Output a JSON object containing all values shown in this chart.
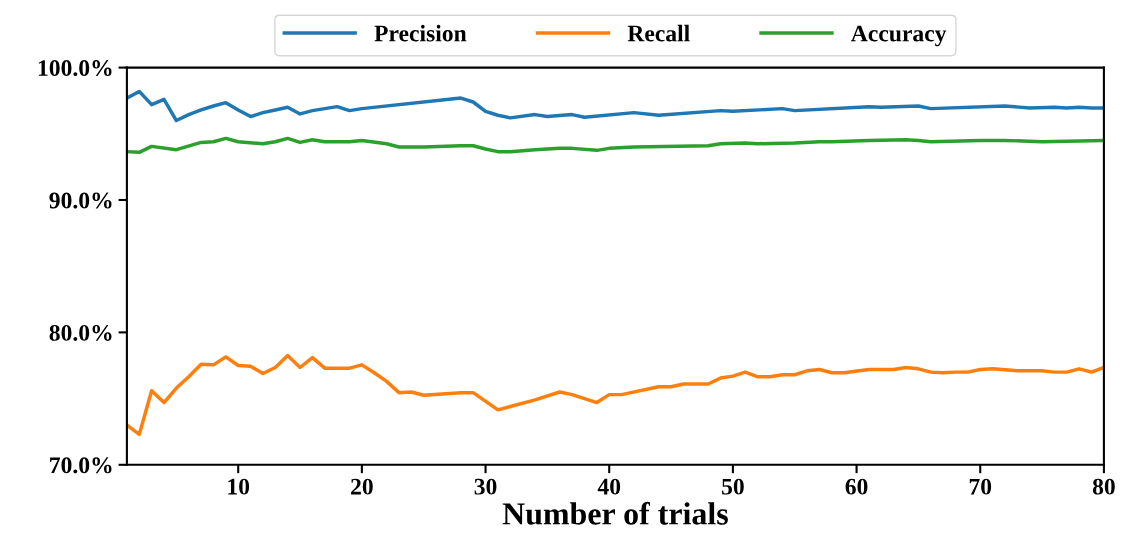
{
  "chart_data": {
    "type": "line",
    "xlabel": "Number of trials",
    "xlim": [
      1,
      80
    ],
    "xticks": [
      10,
      20,
      30,
      40,
      50,
      60,
      70,
      80
    ],
    "ylim": [
      70,
      100
    ],
    "yticks": [
      {
        "value": 70,
        "label": "70.0%"
      },
      {
        "value": 80,
        "label": "80.0%"
      },
      {
        "value": 90,
        "label": "90.0%"
      },
      {
        "value": 100,
        "label": "100.0%"
      }
    ],
    "grid": false,
    "legend": "top",
    "marker": "none",
    "line_style": "solid",
    "series": [
      {
        "name": "Precision",
        "color": "#1f77b4",
        "x": [
          1,
          2,
          3,
          4,
          5,
          6,
          7,
          8,
          9,
          10,
          11,
          12,
          13,
          14,
          15,
          16,
          17,
          18,
          19,
          20,
          28,
          29,
          30,
          31,
          32,
          34,
          35,
          37,
          38,
          42,
          44,
          49,
          50,
          54,
          55,
          61,
          62,
          65,
          66,
          72,
          74,
          76,
          77,
          78,
          79,
          80
        ],
        "values": [
          97.7,
          98.2,
          97.2,
          97.6,
          96.0,
          96.45,
          96.8,
          97.1,
          97.35,
          96.8,
          96.3,
          96.6,
          96.8,
          97.0,
          96.5,
          96.75,
          96.9,
          97.05,
          96.75,
          96.9,
          97.7,
          97.4,
          96.7,
          96.4,
          96.2,
          96.45,
          96.3,
          96.45,
          96.25,
          96.6,
          96.4,
          96.75,
          96.7,
          96.9,
          96.75,
          97.05,
          97.0,
          97.1,
          96.9,
          97.1,
          96.95,
          97.0,
          96.95,
          97.0,
          96.95,
          96.95
        ]
      },
      {
        "name": "Recall",
        "color": "#ff7f0e",
        "x": [
          1,
          2,
          3,
          4,
          5,
          6,
          7,
          8,
          9,
          10,
          11,
          12,
          13,
          14,
          15,
          16,
          17,
          19,
          20,
          21,
          22,
          23,
          24,
          25,
          28,
          29,
          31,
          34,
          36,
          37,
          39,
          40,
          41,
          44,
          45,
          46,
          48,
          49,
          50,
          51,
          52,
          53,
          54,
          55,
          56,
          57,
          58,
          59,
          61,
          63,
          64,
          65,
          66,
          67,
          68,
          69,
          70,
          71,
          73,
          75,
          76,
          77,
          78,
          79,
          80
        ],
        "values": [
          73.0,
          72.3,
          75.6,
          74.7,
          75.8,
          76.65,
          77.6,
          77.55,
          78.15,
          77.5,
          77.45,
          76.9,
          77.35,
          78.25,
          77.35,
          78.1,
          77.3,
          77.3,
          77.55,
          76.95,
          76.3,
          75.45,
          75.5,
          75.25,
          75.45,
          75.45,
          74.15,
          74.9,
          75.5,
          75.3,
          74.7,
          75.3,
          75.3,
          75.9,
          75.9,
          76.1,
          76.1,
          76.55,
          76.7,
          77.0,
          76.65,
          76.65,
          76.8,
          76.8,
          77.1,
          77.2,
          76.95,
          76.95,
          77.2,
          77.2,
          77.35,
          77.25,
          77.0,
          76.95,
          77.0,
          77.0,
          77.2,
          77.25,
          77.1,
          77.1,
          77.0,
          77.0,
          77.25,
          77.0,
          77.35
        ]
      },
      {
        "name": "Accuracy",
        "color": "#2ca02c",
        "x": [
          1,
          2,
          3,
          5,
          7,
          8,
          9,
          10,
          12,
          13,
          14,
          15,
          16,
          17,
          19,
          20,
          22,
          23,
          25,
          28,
          29,
          30,
          31,
          32,
          34,
          36,
          37,
          39,
          40,
          42,
          48,
          49,
          51,
          52,
          55,
          57,
          58,
          61,
          64,
          65,
          66,
          70,
          72,
          75,
          80
        ],
        "values": [
          93.65,
          93.6,
          94.05,
          93.8,
          94.35,
          94.4,
          94.65,
          94.4,
          94.25,
          94.4,
          94.65,
          94.35,
          94.55,
          94.4,
          94.4,
          94.5,
          94.25,
          94.0,
          94.0,
          94.1,
          94.1,
          93.85,
          93.65,
          93.65,
          93.8,
          93.9,
          93.9,
          93.75,
          93.9,
          94.0,
          94.1,
          94.25,
          94.3,
          94.25,
          94.3,
          94.4,
          94.4,
          94.5,
          94.55,
          94.5,
          94.4,
          94.5,
          94.5,
          94.4,
          94.5
        ]
      }
    ]
  }
}
